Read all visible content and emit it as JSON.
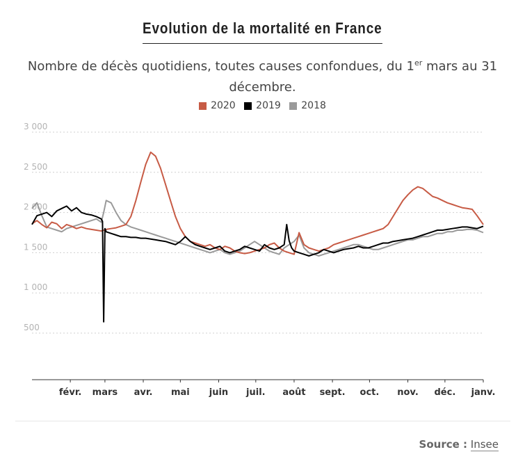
{
  "chart_data": {
    "type": "line",
    "title": "Evolution de la mortalité en France",
    "subtitle_pre": "Nombre de décès quotidiens, toutes causes confondues, du 1",
    "subtitle_sup": "er",
    "subtitle_post": " mars au 31 décembre.",
    "x_ticks": [
      "févr.",
      "mars",
      "avr.",
      "mai",
      "juin",
      "juil.",
      "août",
      "sept.",
      "oct.",
      "nov.",
      "déc.",
      "janv."
    ],
    "y_ticks": [
      "3 000",
      "2 500",
      "2 000",
      "1 500",
      "1 000",
      "500"
    ],
    "y_tick_values": [
      3000,
      2500,
      2000,
      1500,
      1000,
      500
    ],
    "ylim": [
      0,
      3000
    ],
    "xlim": [
      0,
      365
    ],
    "grid": true,
    "legend_position": "top-center",
    "series": [
      {
        "name": "2020",
        "color": "#c75b45",
        "x": [
          0,
          4,
          8,
          12,
          16,
          20,
          24,
          28,
          32,
          36,
          40,
          44,
          48,
          52,
          56,
          60,
          64,
          68,
          72,
          76,
          80,
          84,
          88,
          92,
          96,
          100,
          104,
          108,
          112,
          116,
          120,
          124,
          128,
          132,
          136,
          140,
          144,
          148,
          152,
          156,
          160,
          164,
          168,
          172,
          176,
          180,
          184,
          188,
          192,
          196,
          200,
          204,
          208,
          212,
          216,
          220,
          224,
          228,
          232,
          236,
          240,
          244,
          248,
          252,
          256,
          260,
          264,
          268,
          272,
          276,
          280,
          284,
          288,
          292,
          296,
          300,
          304,
          308,
          312,
          316,
          320,
          324,
          328,
          332,
          336,
          340,
          344,
          348,
          352,
          356,
          360,
          365
        ],
        "values": [
          1860,
          1900,
          1850,
          1810,
          1880,
          1860,
          1800,
          1850,
          1830,
          1800,
          1820,
          1800,
          1790,
          1780,
          1770,
          1790,
          1800,
          1810,
          1830,
          1850,
          1950,
          2150,
          2380,
          2600,
          2750,
          2700,
          2550,
          2350,
          2150,
          1950,
          1800,
          1700,
          1640,
          1620,
          1600,
          1580,
          1600,
          1560,
          1540,
          1580,
          1560,
          1520,
          1500,
          1490,
          1500,
          1520,
          1540,
          1560,
          1600,
          1620,
          1560,
          1520,
          1500,
          1480,
          1750,
          1600,
          1560,
          1540,
          1520,
          1540,
          1560,
          1600,
          1620,
          1640,
          1660,
          1680,
          1700,
          1720,
          1740,
          1760,
          1780,
          1800,
          1850,
          1950,
          2050,
          2150,
          2220,
          2280,
          2320,
          2300,
          2250,
          2200,
          2180,
          2150,
          2120,
          2100,
          2080,
          2060,
          2050,
          2040,
          1960,
          1850
        ]
      },
      {
        "name": "2019",
        "color": "#000000",
        "x": [
          0,
          4,
          8,
          12,
          16,
          20,
          24,
          28,
          32,
          36,
          40,
          44,
          48,
          52,
          56,
          57,
          58,
          59,
          60,
          64,
          68,
          72,
          76,
          80,
          84,
          88,
          92,
          96,
          100,
          104,
          108,
          112,
          116,
          120,
          124,
          128,
          132,
          136,
          140,
          144,
          148,
          152,
          156,
          160,
          164,
          168,
          172,
          176,
          180,
          184,
          188,
          192,
          196,
          200,
          204,
          206,
          208,
          210,
          212,
          216,
          220,
          224,
          228,
          232,
          236,
          240,
          244,
          248,
          252,
          256,
          260,
          264,
          268,
          272,
          276,
          280,
          284,
          288,
          292,
          296,
          300,
          304,
          308,
          312,
          316,
          320,
          324,
          328,
          332,
          336,
          340,
          344,
          348,
          352,
          356,
          360,
          365
        ],
        "values": [
          1850,
          1960,
          1980,
          2000,
          1950,
          2020,
          2050,
          2080,
          2020,
          2060,
          2000,
          1980,
          1970,
          1950,
          1920,
          1890,
          640,
          1800,
          1760,
          1740,
          1720,
          1700,
          1700,
          1690,
          1690,
          1680,
          1680,
          1670,
          1660,
          1650,
          1640,
          1620,
          1600,
          1640,
          1700,
          1640,
          1600,
          1580,
          1560,
          1540,
          1560,
          1580,
          1520,
          1500,
          1520,
          1540,
          1580,
          1560,
          1540,
          1520,
          1600,
          1560,
          1540,
          1560,
          1600,
          1850,
          1650,
          1560,
          1520,
          1500,
          1480,
          1460,
          1480,
          1500,
          1540,
          1520,
          1500,
          1520,
          1540,
          1550,
          1560,
          1580,
          1560,
          1560,
          1580,
          1600,
          1620,
          1620,
          1640,
          1650,
          1660,
          1670,
          1680,
          1700,
          1720,
          1740,
          1760,
          1780,
          1780,
          1790,
          1800,
          1810,
          1820,
          1820,
          1810,
          1800,
          1830
        ]
      },
      {
        "name": "2018",
        "color": "#9a9a9a",
        "x": [
          0,
          4,
          8,
          12,
          16,
          20,
          24,
          28,
          32,
          36,
          40,
          44,
          48,
          52,
          56,
          58,
          60,
          64,
          68,
          72,
          76,
          80,
          84,
          88,
          92,
          96,
          100,
          104,
          108,
          112,
          116,
          120,
          124,
          128,
          132,
          136,
          140,
          144,
          148,
          152,
          156,
          160,
          164,
          168,
          172,
          176,
          180,
          184,
          188,
          192,
          196,
          200,
          204,
          208,
          212,
          216,
          220,
          224,
          228,
          232,
          236,
          240,
          244,
          248,
          252,
          256,
          260,
          264,
          268,
          272,
          276,
          280,
          284,
          288,
          292,
          296,
          300,
          304,
          308,
          312,
          316,
          320,
          324,
          328,
          332,
          336,
          340,
          344,
          348,
          352,
          356,
          360,
          365
        ],
        "values": [
          2050,
          2120,
          1960,
          1820,
          1800,
          1780,
          1760,
          1800,
          1820,
          1840,
          1860,
          1880,
          1900,
          1920,
          1880,
          2000,
          2150,
          2120,
          2000,
          1900,
          1850,
          1820,
          1800,
          1780,
          1760,
          1740,
          1720,
          1700,
          1680,
          1660,
          1640,
          1620,
          1600,
          1580,
          1560,
          1540,
          1520,
          1500,
          1520,
          1540,
          1500,
          1480,
          1500,
          1520,
          1560,
          1600,
          1640,
          1600,
          1560,
          1520,
          1500,
          1480,
          1560,
          1600,
          1640,
          1720,
          1560,
          1500,
          1480,
          1460,
          1480,
          1500,
          1520,
          1540,
          1560,
          1580,
          1600,
          1600,
          1580,
          1560,
          1540,
          1540,
          1560,
          1580,
          1600,
          1620,
          1640,
          1660,
          1660,
          1680,
          1700,
          1700,
          1720,
          1740,
          1740,
          1760,
          1760,
          1780,
          1780,
          1790,
          1790,
          1780,
          1750
        ]
      }
    ]
  },
  "source": {
    "label": "Source :",
    "link": "Insee"
  }
}
